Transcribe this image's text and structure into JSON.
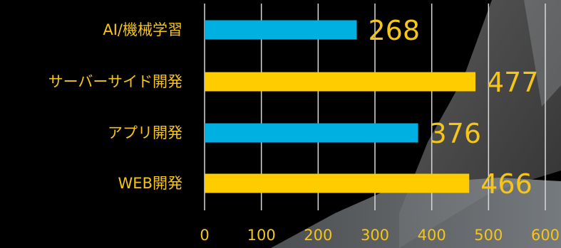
{
  "chart_data": {
    "type": "bar",
    "orientation": "horizontal",
    "categories": [
      "AI/機械学習",
      "サーバーサイド開発",
      "アプリ開発",
      "WEB開発"
    ],
    "values": [
      268,
      477,
      376,
      466
    ],
    "bar_colors": [
      "#00B0E0",
      "#FFCC00",
      "#00B0E0",
      "#FFCC00"
    ],
    "data_labels": [
      "268",
      "477",
      "376",
      "466"
    ],
    "xlim": [
      0,
      600
    ],
    "x_ticks": [
      0,
      100,
      200,
      300,
      400,
      500,
      600
    ],
    "x_tick_labels": [
      "0",
      "100",
      "200",
      "300",
      "400",
      "500",
      "600"
    ],
    "grid": true,
    "title": "",
    "xlabel": "",
    "ylabel": ""
  },
  "colors": {
    "background": "#000000",
    "label_text": "#F5C518",
    "gridline": "#D9D9D9",
    "accent_blue": "#00B0E0",
    "accent_yellow": "#FFCC00"
  }
}
